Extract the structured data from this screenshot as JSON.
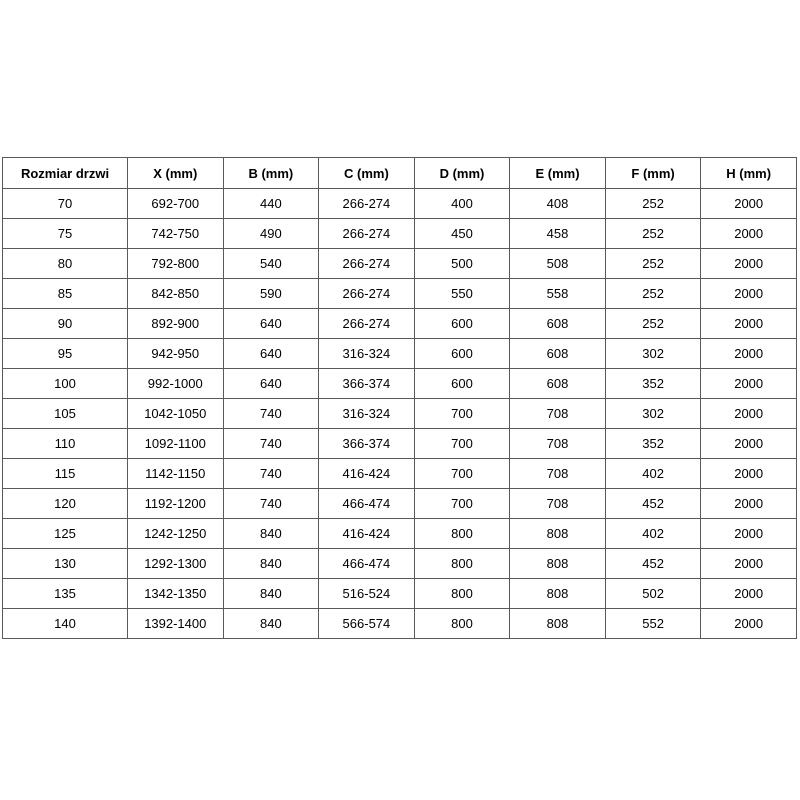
{
  "table": {
    "columns": [
      "Rozmiar drzwi",
      "X (mm)",
      "B (mm)",
      "C (mm)",
      "D (mm)",
      "E (mm)",
      "F (mm)",
      "H (mm)"
    ],
    "rows": [
      [
        "70",
        "692-700",
        "440",
        "266-274",
        "400",
        "408",
        "252",
        "2000"
      ],
      [
        "75",
        "742-750",
        "490",
        "266-274",
        "450",
        "458",
        "252",
        "2000"
      ],
      [
        "80",
        "792-800",
        "540",
        "266-274",
        "500",
        "508",
        "252",
        "2000"
      ],
      [
        "85",
        "842-850",
        "590",
        "266-274",
        "550",
        "558",
        "252",
        "2000"
      ],
      [
        "90",
        "892-900",
        "640",
        "266-274",
        "600",
        "608",
        "252",
        "2000"
      ],
      [
        "95",
        "942-950",
        "640",
        "316-324",
        "600",
        "608",
        "302",
        "2000"
      ],
      [
        "100",
        "992-1000",
        "640",
        "366-374",
        "600",
        "608",
        "352",
        "2000"
      ],
      [
        "105",
        "1042-1050",
        "740",
        "316-324",
        "700",
        "708",
        "302",
        "2000"
      ],
      [
        "110",
        "1092-1100",
        "740",
        "366-374",
        "700",
        "708",
        "352",
        "2000"
      ],
      [
        "115",
        "1142-1150",
        "740",
        "416-424",
        "700",
        "708",
        "402",
        "2000"
      ],
      [
        "120",
        "1192-1200",
        "740",
        "466-474",
        "700",
        "708",
        "452",
        "2000"
      ],
      [
        "125",
        "1242-1250",
        "840",
        "416-424",
        "800",
        "808",
        "402",
        "2000"
      ],
      [
        "130",
        "1292-1300",
        "840",
        "466-474",
        "800",
        "808",
        "452",
        "2000"
      ],
      [
        "135",
        "1342-1350",
        "840",
        "516-524",
        "800",
        "808",
        "502",
        "2000"
      ],
      [
        "140",
        "1392-1400",
        "840",
        "566-574",
        "800",
        "808",
        "552",
        "2000"
      ]
    ]
  },
  "colors": {
    "border": "#595959",
    "text": "#000000",
    "background": "#ffffff"
  }
}
